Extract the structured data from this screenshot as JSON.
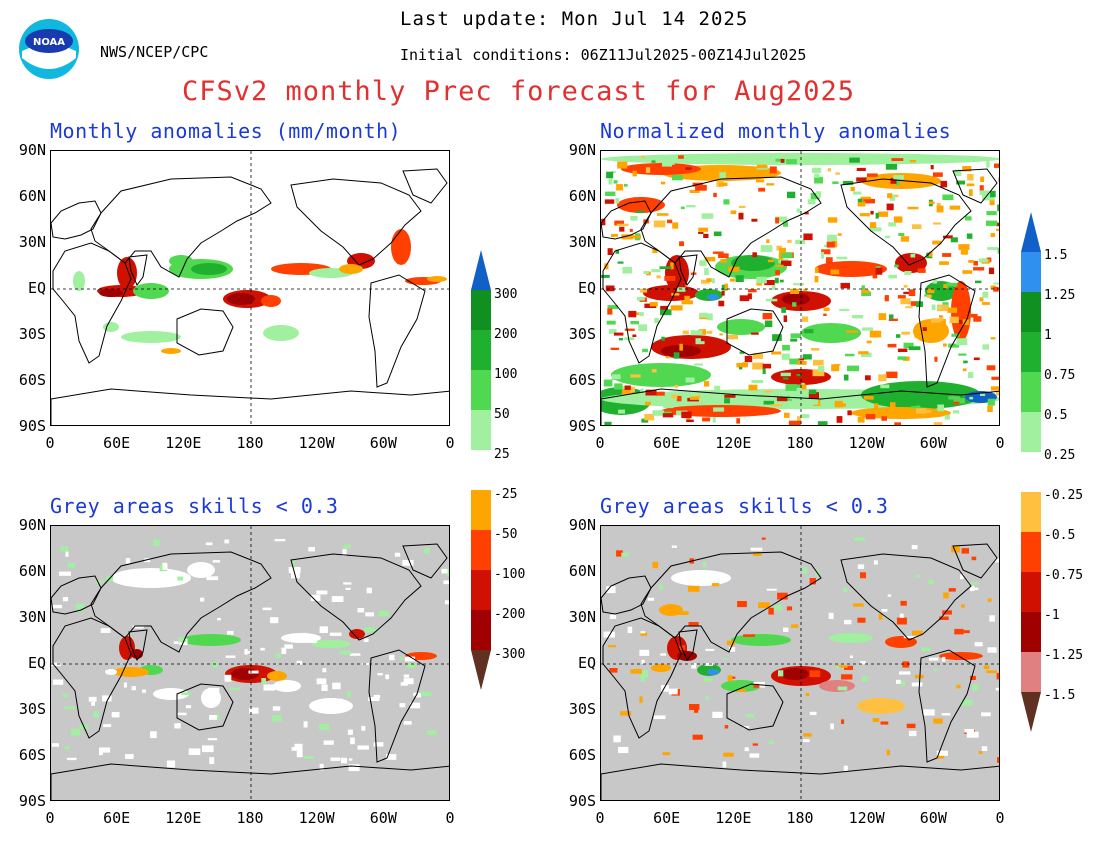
{
  "header": {
    "last_update": "Last update: Mon Jul 14 2025",
    "initial_conditions": "Initial conditions: 06Z11Jul2025-00Z14Jul2025",
    "org": "NWS/NCEP/CPC",
    "title": "CFSv2 monthly Prec forecast for Aug2025",
    "logo_text": "NOAA"
  },
  "panels": [
    {
      "id": "top-left",
      "title": "Monthly anomalies (mm/month)",
      "background": "#ffffff"
    },
    {
      "id": "top-right",
      "title": "Normalized monthly anomalies",
      "background": "#ffffff"
    },
    {
      "id": "bottom-left",
      "title": "Grey areas skills < 0.3",
      "background": "#c8c8c8"
    },
    {
      "id": "bottom-right",
      "title": "Grey areas skills < 0.3",
      "background": "#c8c8c8"
    }
  ],
  "axes": {
    "lat_labels": [
      "90N",
      "60N",
      "30N",
      "EQ",
      "30S",
      "60S",
      "90S"
    ],
    "lon_labels": [
      "0",
      "60E",
      "120E",
      "180",
      "120W",
      "60W",
      "0"
    ]
  },
  "colorbar_left": {
    "labels_wet": [
      "300",
      "200",
      "100",
      "50",
      "25"
    ],
    "labels_dry": [
      "-25",
      "-50",
      "-100",
      "-200",
      "-300"
    ],
    "colors_wet": [
      "#1060c8",
      "#109020",
      "#20b030",
      "#50d850",
      "#a0f0a0"
    ],
    "colors_dry": [
      "#ffa500",
      "#ff4000",
      "#d01000",
      "#a00000",
      "#603020"
    ]
  },
  "colorbar_right": {
    "labels_wet": [
      "1.5",
      "1.25",
      "1",
      "0.75",
      "0.5",
      "0.25"
    ],
    "labels_dry": [
      "-0.25",
      "-0.5",
      "-0.75",
      "-1",
      "-1.25",
      "-1.5"
    ],
    "colors_wet": [
      "#1060c8",
      "#3090f0",
      "#109020",
      "#20b030",
      "#50d850",
      "#a0f0a0"
    ],
    "colors_dry": [
      "#ffc040",
      "#ff4000",
      "#d01000",
      "#a00000",
      "#e08080",
      "#603020"
    ]
  }
}
